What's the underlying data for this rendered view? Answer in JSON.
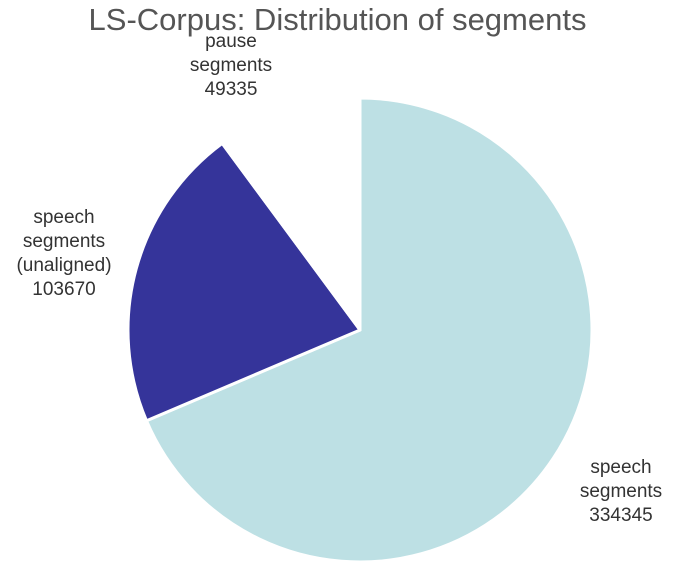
{
  "chart_data": {
    "type": "pie",
    "title": "LS-Corpus: Distribution of segments",
    "slices": [
      {
        "label_lines": [
          "speech",
          "segments"
        ],
        "value": 334345,
        "value_text": "334345",
        "color": "#bde0e4"
      },
      {
        "label_lines": [
          "speech",
          "segments",
          "(unaligned)"
        ],
        "value": 103670,
        "value_text": "103670",
        "color": "#35349a"
      },
      {
        "label_lines": [
          "pause",
          "segments"
        ],
        "value": 49335,
        "value_text": "49335",
        "color": "#ffffff"
      }
    ],
    "start_angle": "12 o'clock",
    "direction": "clockwise",
    "legend": "none"
  }
}
